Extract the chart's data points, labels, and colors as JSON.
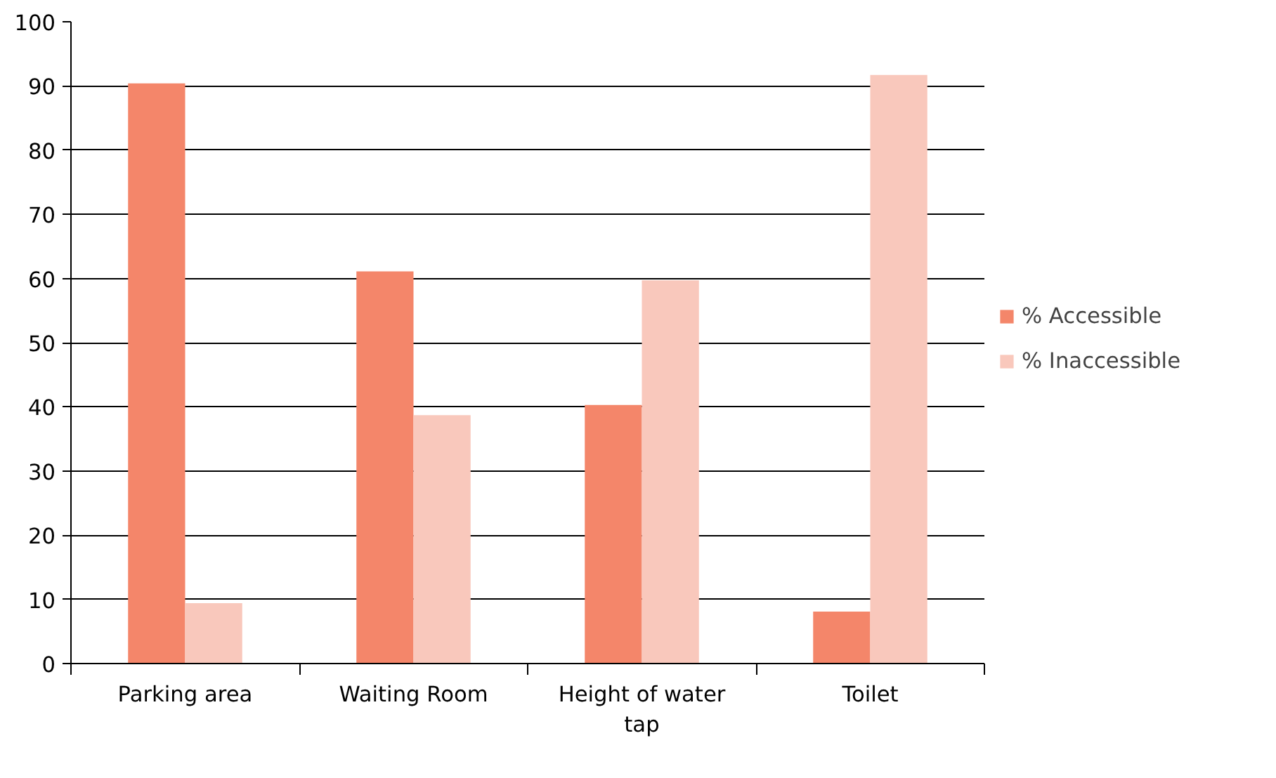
{
  "chart_data": {
    "type": "bar",
    "categories": [
      "Parking area",
      "Waiting Room",
      "Height of water tap",
      "Toilet"
    ],
    "series": [
      {
        "name": "% Accessible",
        "color": "#f4866a",
        "values": [
          90.4,
          61.1,
          40.3,
          8.1
        ]
      },
      {
        "name": "% Inaccessible",
        "color": "#f9c8bc",
        "values": [
          9.4,
          38.7,
          59.7,
          91.7
        ]
      }
    ],
    "ylim": [
      0,
      100
    ],
    "yticks": [
      0,
      10,
      20,
      30,
      40,
      50,
      60,
      70,
      80,
      90,
      100
    ],
    "grid": "y",
    "legend": "right"
  }
}
